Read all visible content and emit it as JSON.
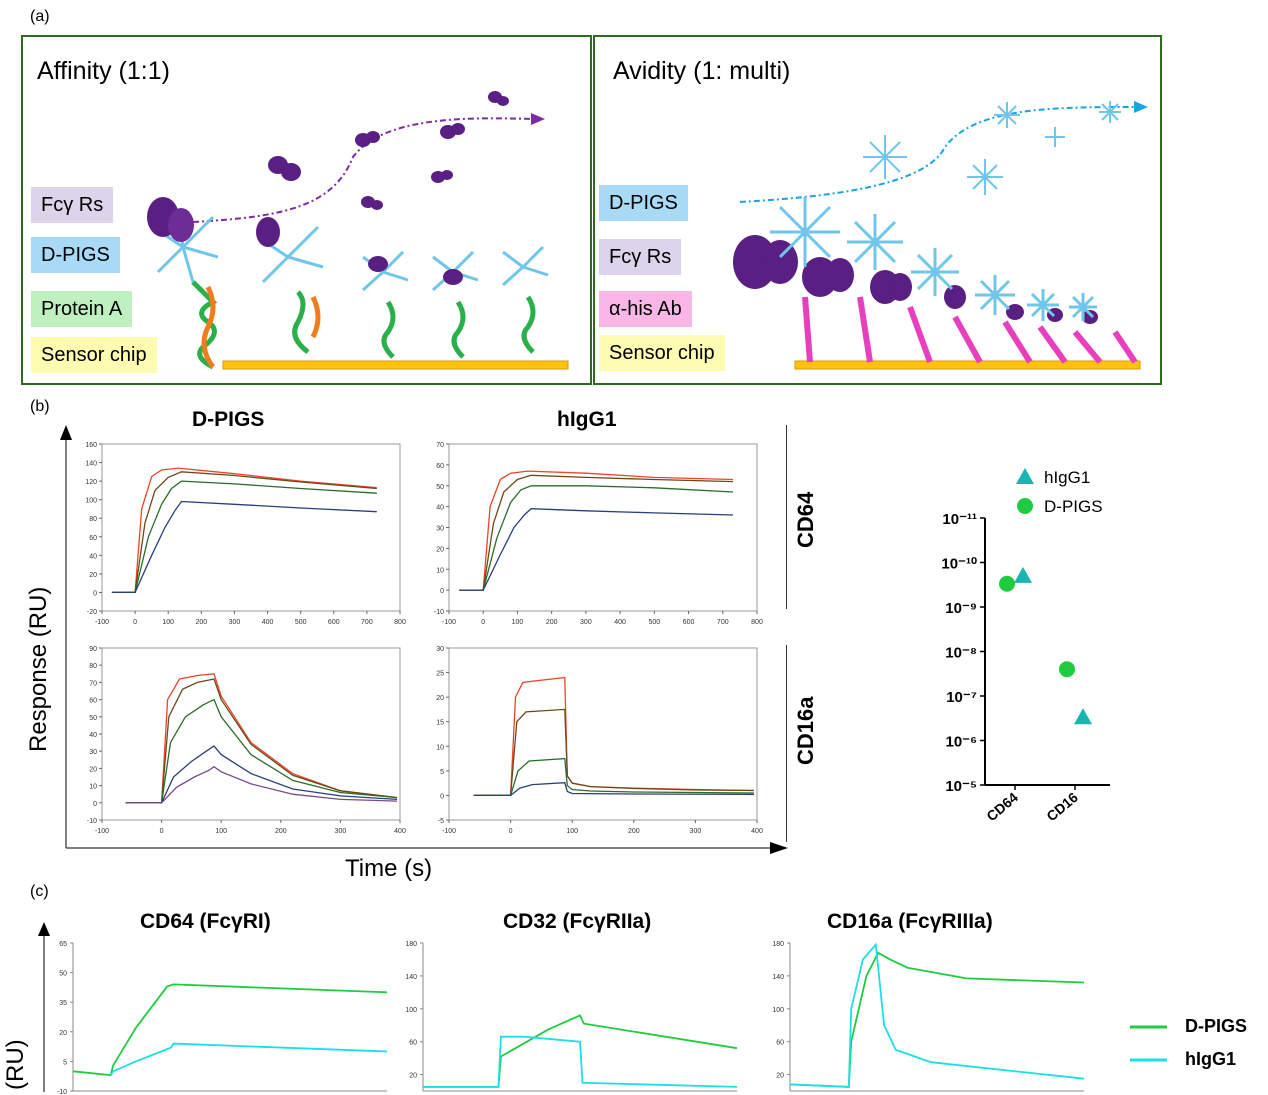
{
  "panel_a": {
    "label": "(a)",
    "affinity": {
      "title": "Affinity (1:1)",
      "tags": [
        "Fcγ Rs",
        "D-PIGS",
        "Protein A",
        "Sensor chip"
      ]
    },
    "avidity": {
      "title": "Avidity (1: multi)",
      "tags": [
        "D-PIGS",
        "Fcγ Rs",
        "α-his Ab",
        "Sensor chip"
      ]
    },
    "colors": {
      "frame": "#2e6b1f",
      "fcgr_tag": "#ddd3ea",
      "dpigs_tag": "#a8daf5",
      "proteinA_tag": "#bff0c0",
      "chip_tag": "#fffbb3",
      "ahis_tag": "#f9b6e6",
      "fcgr_protein": "#5a1f82",
      "chip": "#ffc20e",
      "ab_stalk": "#e83fbe"
    }
  },
  "panel_b": {
    "label": "(b)",
    "col_titles": [
      "D-PIGS",
      "hIgG1"
    ],
    "row_titles": [
      "CD64",
      "CD16a"
    ],
    "y_title": "Response (RU)",
    "x_title": "Time (s)",
    "kd_legend": [
      "hIgG1",
      "D-PIGS"
    ],
    "kd_y_ticks": [
      "10⁻¹¹",
      "10⁻¹⁰",
      "10⁻⁹",
      "10⁻⁸",
      "10⁻⁷",
      "10⁻⁶",
      "10⁻⁵"
    ],
    "kd_x_ticks": [
      "CD64",
      "CD16"
    ]
  },
  "panel_c": {
    "label": "(c)",
    "titles": [
      "CD64 (FcγRI)",
      "CD32 (FcγRIIa)",
      "CD16a (FcγRIIIa)"
    ],
    "y_title": "(RU)",
    "legend": [
      "D-PIGS",
      "hIgG1"
    ]
  },
  "chart_data": [
    {
      "type": "line",
      "panel": "b",
      "title": "D-PIGS / CD64",
      "xlim": [
        -100,
        800
      ],
      "ylim": [
        -20,
        160
      ],
      "x_ticks": [
        -100,
        0,
        100,
        200,
        300,
        400,
        500,
        600,
        700,
        800
      ],
      "y_ticks": [
        -20,
        0,
        20,
        40,
        60,
        80,
        100,
        120,
        140,
        160
      ],
      "series": [
        {
          "x": [
            -70,
            0,
            20,
            50,
            80,
            130,
            300,
            500,
            730
          ],
          "y": [
            0,
            0,
            90,
            125,
            132,
            134,
            128,
            120,
            113
          ]
        },
        {
          "x": [
            -70,
            0,
            30,
            60,
            100,
            140,
            300,
            500,
            730
          ],
          "y": [
            0,
            0,
            75,
            110,
            124,
            130,
            126,
            119,
            112
          ]
        },
        {
          "x": [
            -70,
            0,
            40,
            80,
            110,
            140,
            300,
            500,
            730
          ],
          "y": [
            0,
            0,
            60,
            95,
            112,
            120,
            117,
            112,
            107
          ]
        },
        {
          "x": [
            -70,
            0,
            50,
            90,
            120,
            140,
            300,
            500,
            730
          ],
          "y": [
            0,
            0,
            40,
            70,
            88,
            98,
            95,
            91,
            87
          ]
        }
      ]
    },
    {
      "type": "line",
      "panel": "b",
      "title": "hIgG1 / CD64",
      "xlim": [
        -100,
        800
      ],
      "ylim": [
        -10,
        70
      ],
      "x_ticks": [
        -100,
        0,
        100,
        200,
        300,
        400,
        500,
        600,
        700,
        800
      ],
      "y_ticks": [
        -10,
        0,
        10,
        20,
        30,
        40,
        50,
        60,
        70
      ],
      "series": [
        {
          "x": [
            -70,
            0,
            20,
            50,
            80,
            130,
            300,
            500,
            730
          ],
          "y": [
            0,
            0,
            40,
            53,
            56,
            57,
            56,
            54,
            53
          ]
        },
        {
          "x": [
            -70,
            0,
            30,
            60,
            100,
            140,
            300,
            500,
            730
          ],
          "y": [
            0,
            0,
            32,
            47,
            53,
            55,
            54,
            53,
            52
          ]
        },
        {
          "x": [
            -70,
            0,
            40,
            80,
            110,
            140,
            300,
            500,
            730
          ],
          "y": [
            0,
            0,
            25,
            42,
            48,
            50,
            50,
            49,
            47
          ]
        },
        {
          "x": [
            -70,
            0,
            50,
            90,
            120,
            140,
            300,
            500,
            730
          ],
          "y": [
            0,
            0,
            17,
            30,
            36,
            39,
            38,
            37,
            36
          ]
        }
      ]
    },
    {
      "type": "line",
      "panel": "b",
      "title": "D-PIGS / CD16a",
      "xlim": [
        -100,
        400
      ],
      "ylim": [
        -10,
        90
      ],
      "x_ticks": [
        -100,
        0,
        100,
        200,
        300,
        400
      ],
      "y_ticks": [
        -10,
        0,
        10,
        20,
        30,
        40,
        50,
        60,
        70,
        80,
        90
      ],
      "series": [
        {
          "x": [
            -60,
            0,
            10,
            30,
            60,
            88,
            100,
            150,
            220,
            300,
            395
          ],
          "y": [
            0,
            0,
            60,
            72,
            74,
            75,
            62,
            35,
            17,
            7,
            3
          ]
        },
        {
          "x": [
            -60,
            0,
            12,
            35,
            60,
            88,
            100,
            150,
            220,
            300,
            395
          ],
          "y": [
            0,
            0,
            50,
            66,
            70,
            72,
            60,
            34,
            16,
            7,
            3
          ]
        },
        {
          "x": [
            -60,
            0,
            15,
            40,
            70,
            88,
            100,
            150,
            220,
            300,
            395
          ],
          "y": [
            0,
            0,
            35,
            50,
            57,
            60,
            50,
            28,
            13,
            6,
            3
          ]
        },
        {
          "x": [
            -60,
            0,
            20,
            50,
            75,
            88,
            100,
            150,
            220,
            300,
            395
          ],
          "y": [
            0,
            0,
            15,
            24,
            30,
            33,
            28,
            17,
            8,
            4,
            2
          ]
        },
        {
          "x": [
            -60,
            0,
            25,
            55,
            80,
            88,
            100,
            150,
            220,
            300,
            395
          ],
          "y": [
            0,
            0,
            9,
            15,
            19,
            21,
            18,
            11,
            5,
            2,
            1
          ]
        }
      ]
    },
    {
      "type": "line",
      "panel": "b",
      "title": "hIgG1 / CD16a",
      "xlim": [
        -100,
        400
      ],
      "ylim": [
        -5,
        30
      ],
      "x_ticks": [
        -100,
        0,
        100,
        200,
        300,
        400
      ],
      "y_ticks": [
        -5,
        0,
        5,
        10,
        15,
        20,
        25,
        30
      ],
      "series": [
        {
          "x": [
            -60,
            0,
            8,
            20,
            88,
            92,
            100,
            130,
            200,
            300,
            395
          ],
          "y": [
            0,
            0,
            20,
            23,
            24,
            4,
            2.5,
            1.8,
            1.5,
            1.2,
            1
          ]
        },
        {
          "x": [
            -60,
            0,
            10,
            25,
            88,
            92,
            100,
            130,
            200,
            300,
            395
          ],
          "y": [
            0,
            0,
            15,
            17,
            17.5,
            4,
            2.5,
            1.8,
            1.4,
            1.1,
            1
          ]
        },
        {
          "x": [
            -60,
            0,
            12,
            30,
            88,
            92,
            100,
            130,
            200,
            300,
            395
          ],
          "y": [
            0,
            0,
            5,
            7,
            7.5,
            2,
            1.2,
            0.9,
            0.7,
            0.6,
            0.5
          ]
        },
        {
          "x": [
            -60,
            0,
            15,
            35,
            88,
            92,
            100,
            200,
            395
          ],
          "y": [
            0,
            0,
            1.5,
            2.2,
            2.6,
            0.8,
            0.4,
            0.3,
            0.2
          ]
        }
      ]
    },
    {
      "type": "scatter",
      "panel": "b",
      "title": "",
      "y_scale": "log-inverted",
      "ylim": [
        1e-11,
        1e-05
      ],
      "categories": [
        "CD64",
        "CD16"
      ],
      "series": [
        {
          "name": "hIgG1",
          "values": [
            2e-10,
            3e-07
          ],
          "color": "#19b4b4"
        },
        {
          "name": "D-PIGS",
          "values": [
            3e-10,
            2.5e-08
          ],
          "color": "#1fcc3f"
        }
      ]
    },
    {
      "type": "line",
      "panel": "c",
      "title": "CD64 (FcγRI)",
      "ylim": [
        -10,
        65
      ],
      "y_ticks": [
        -10,
        5,
        20,
        35,
        50,
        65
      ],
      "y_tick_labels": [
        "-10",
        "5",
        "20",
        "35",
        "50",
        "65"
      ],
      "series": [
        {
          "name": "D-PIGS",
          "x": [
            0,
            30,
            32,
            50,
            75,
            80,
            250
          ],
          "y": [
            0,
            -2,
            3,
            22,
            43,
            44,
            40
          ],
          "color": "#1fcc3f"
        },
        {
          "name": "hIgG1",
          "x": [
            30,
            32,
            50,
            78,
            80,
            250
          ],
          "y": [
            -2,
            0,
            5,
            12,
            14,
            10
          ],
          "color": "#19e0e6"
        }
      ]
    },
    {
      "type": "line",
      "panel": "c",
      "title": "CD32 (FcγRIIa)",
      "ylim": [
        0,
        180
      ],
      "y_ticks": [
        20,
        60,
        100,
        140,
        180
      ],
      "series": [
        {
          "name": "D-PIGS",
          "x": [
            0,
            60,
            62,
            100,
            125,
            128,
            250
          ],
          "y": [
            5,
            5,
            42,
            75,
            92,
            82,
            52
          ],
          "color": "#1fcc3f"
        },
        {
          "name": "hIgG1",
          "x": [
            0,
            60,
            62,
            80,
            125,
            127,
            250
          ],
          "y": [
            5,
            5,
            66,
            66,
            60,
            10,
            5
          ],
          "color": "#19e0e6"
        }
      ]
    },
    {
      "type": "line",
      "panel": "c",
      "title": "CD16a (FcγRIIIa)",
      "ylim": [
        0,
        180
      ],
      "y_ticks": [
        20,
        60,
        100,
        140,
        180
      ],
      "series": [
        {
          "name": "D-PIGS",
          "x": [
            0,
            50,
            52,
            65,
            75,
            85,
            100,
            150,
            250
          ],
          "y": [
            8,
            5,
            60,
            140,
            168,
            160,
            150,
            137,
            132
          ],
          "color": "#1fcc3f"
        },
        {
          "name": "hIgG1",
          "x": [
            0,
            50,
            52,
            62,
            73,
            80,
            90,
            120,
            250
          ],
          "y": [
            8,
            5,
            100,
            160,
            178,
            80,
            50,
            35,
            15
          ],
          "color": "#19e0e6"
        }
      ]
    }
  ]
}
